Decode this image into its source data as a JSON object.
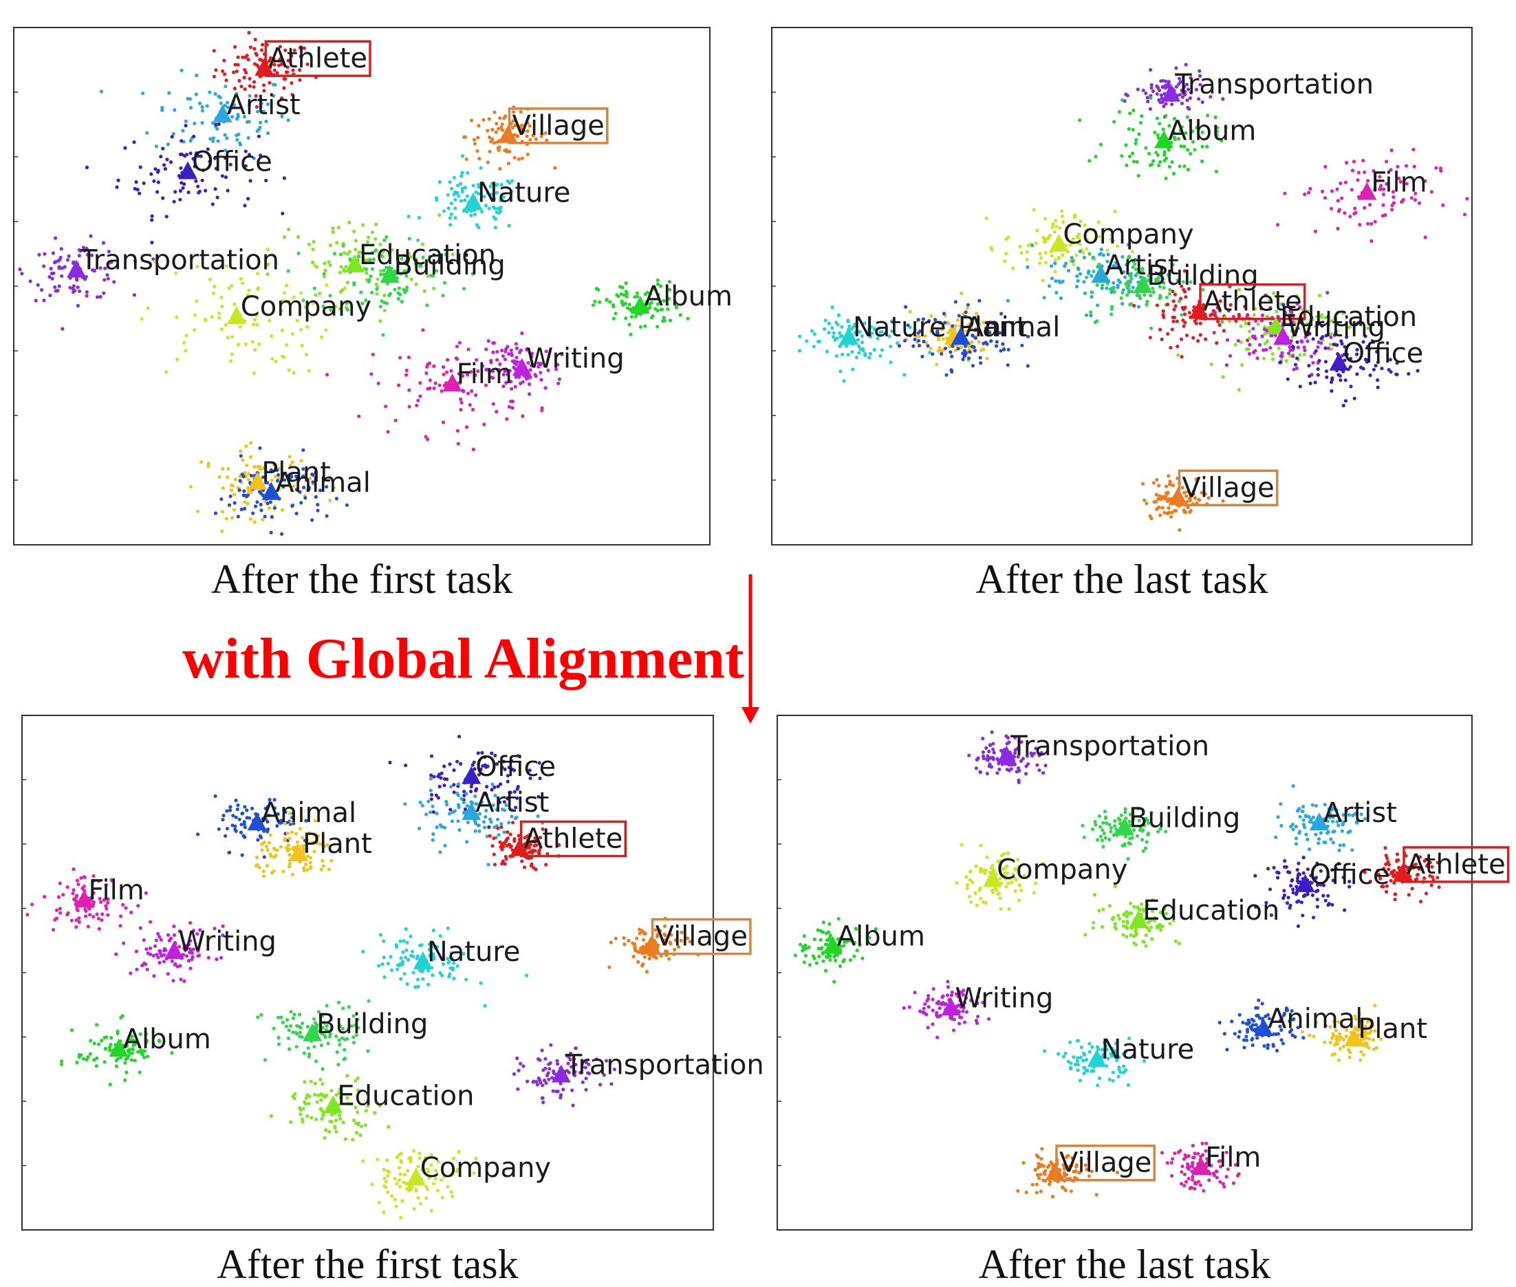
{
  "banner": {
    "text": "with Global Alignment",
    "color": "#ff0000"
  },
  "class_colors": {
    "Athlete": "#e41a1c",
    "Artist": "#29a8e0",
    "Office": "#3a1fc4",
    "Village": "#f07a1a",
    "Nature": "#21d4d4",
    "Transportation": "#8a2be2",
    "Education": "#7ee81e",
    "Building": "#2ed84a",
    "Company": "#c8e820",
    "Album": "#1fd826",
    "Film": "#e020b0",
    "Writing": "#c020e0",
    "Plant": "#f5c21a",
    "Animal": "#1f4fd8"
  },
  "highlights": {
    "Athlete": "#d42020",
    "Village": "#d9843a"
  },
  "chart_data": [
    {
      "type": "scatter",
      "caption": "After the first task",
      "xlim": [
        0,
        100
      ],
      "ylim": [
        0,
        100
      ],
      "clusters": [
        {
          "name": "Athlete",
          "x": 36,
          "y": 92,
          "spread": 3.5
        },
        {
          "name": "Artist",
          "x": 30,
          "y": 83,
          "spread": 5
        },
        {
          "name": "Office",
          "x": 25,
          "y": 72,
          "spread": 5
        },
        {
          "name": "Village",
          "x": 71,
          "y": 79,
          "spread": 3
        },
        {
          "name": "Nature",
          "x": 66,
          "y": 66,
          "spread": 3.5
        },
        {
          "name": "Transportation",
          "x": 9,
          "y": 53,
          "spread": 3.5
        },
        {
          "name": "Education",
          "x": 49,
          "y": 54,
          "spread": 6
        },
        {
          "name": "Building",
          "x": 54,
          "y": 52,
          "spread": 5
        },
        {
          "name": "Company",
          "x": 32,
          "y": 44,
          "spread": 7
        },
        {
          "name": "Album",
          "x": 90,
          "y": 46,
          "spread": 3
        },
        {
          "name": "Film",
          "x": 63,
          "y": 31,
          "spread": 6
        },
        {
          "name": "Writing",
          "x": 73,
          "y": 34,
          "spread": 3
        },
        {
          "name": "Plant",
          "x": 35,
          "y": 12,
          "spread": 4
        },
        {
          "name": "Animal",
          "x": 37,
          "y": 10,
          "spread": 4
        }
      ]
    },
    {
      "type": "scatter",
      "caption": "After the last task",
      "xlim": [
        0,
        100
      ],
      "ylim": [
        0,
        100
      ],
      "clusters": [
        {
          "name": "Transportation",
          "x": 57,
          "y": 87,
          "spread": 2.5
        },
        {
          "name": "Album",
          "x": 56,
          "y": 78,
          "spread": 4
        },
        {
          "name": "Film",
          "x": 85,
          "y": 68,
          "spread": 5
        },
        {
          "name": "Company",
          "x": 41,
          "y": 58,
          "spread": 4
        },
        {
          "name": "Artist",
          "x": 47,
          "y": 52,
          "spread": 4
        },
        {
          "name": "Building",
          "x": 53,
          "y": 50,
          "spread": 4
        },
        {
          "name": "Athlete",
          "x": 61,
          "y": 45,
          "spread": 4
        },
        {
          "name": "Education",
          "x": 72,
          "y": 42,
          "spread": 5
        },
        {
          "name": "Writing",
          "x": 73,
          "y": 40,
          "spread": 4
        },
        {
          "name": "Office",
          "x": 81,
          "y": 35,
          "spread": 4
        },
        {
          "name": "Nature",
          "x": 11,
          "y": 40,
          "spread": 3.5
        },
        {
          "name": "Plant",
          "x": 26,
          "y": 40,
          "spread": 3
        },
        {
          "name": "Animal",
          "x": 27,
          "y": 40,
          "spread": 4
        },
        {
          "name": "Village",
          "x": 58,
          "y": 9,
          "spread": 2.5
        }
      ]
    },
    {
      "type": "scatter",
      "caption": "After the first task",
      "xlim": [
        0,
        100
      ],
      "ylim": [
        0,
        100
      ],
      "clusters": [
        {
          "name": "Office",
          "x": 65,
          "y": 88,
          "spread": 4
        },
        {
          "name": "Artist",
          "x": 65,
          "y": 81,
          "spread": 4
        },
        {
          "name": "Animal",
          "x": 34,
          "y": 79,
          "spread": 3
        },
        {
          "name": "Plant",
          "x": 40,
          "y": 73,
          "spread": 3
        },
        {
          "name": "Athlete",
          "x": 72,
          "y": 74,
          "spread": 2.5
        },
        {
          "name": "Film",
          "x": 9,
          "y": 64,
          "spread": 3
        },
        {
          "name": "Writing",
          "x": 22,
          "y": 54,
          "spread": 3
        },
        {
          "name": "Village",
          "x": 91,
          "y": 55,
          "spread": 2.5
        },
        {
          "name": "Nature",
          "x": 58,
          "y": 52,
          "spread": 3.5
        },
        {
          "name": "Album",
          "x": 14,
          "y": 35,
          "spread": 3
        },
        {
          "name": "Building",
          "x": 42,
          "y": 38,
          "spread": 3.5
        },
        {
          "name": "Transportation",
          "x": 78,
          "y": 30,
          "spread": 3
        },
        {
          "name": "Education",
          "x": 45,
          "y": 24,
          "spread": 3.5
        },
        {
          "name": "Company",
          "x": 57,
          "y": 10,
          "spread": 3.5
        }
      ]
    },
    {
      "type": "scatter",
      "caption": "After the last task",
      "xlim": [
        0,
        100
      ],
      "ylim": [
        0,
        100
      ],
      "clusters": [
        {
          "name": "Transportation",
          "x": 33,
          "y": 92,
          "spread": 2.5
        },
        {
          "name": "Building",
          "x": 50,
          "y": 78,
          "spread": 2.5
        },
        {
          "name": "Artist",
          "x": 78,
          "y": 79,
          "spread": 3
        },
        {
          "name": "Company",
          "x": 31,
          "y": 68,
          "spread": 3
        },
        {
          "name": "Athlete",
          "x": 90,
          "y": 69,
          "spread": 2.5
        },
        {
          "name": "Office",
          "x": 76,
          "y": 67,
          "spread": 3
        },
        {
          "name": "Education",
          "x": 52,
          "y": 60,
          "spread": 3
        },
        {
          "name": "Album",
          "x": 8,
          "y": 55,
          "spread": 2.5
        },
        {
          "name": "Writing",
          "x": 25,
          "y": 43,
          "spread": 2.5
        },
        {
          "name": "Nature",
          "x": 46,
          "y": 33,
          "spread": 2.5
        },
        {
          "name": "Animal",
          "x": 70,
          "y": 39,
          "spread": 2.5
        },
        {
          "name": "Plant",
          "x": 83,
          "y": 37,
          "spread": 2.5
        },
        {
          "name": "Village",
          "x": 40,
          "y": 11,
          "spread": 2.5
        },
        {
          "name": "Film",
          "x": 61,
          "y": 12,
          "spread": 2.5
        }
      ]
    }
  ]
}
